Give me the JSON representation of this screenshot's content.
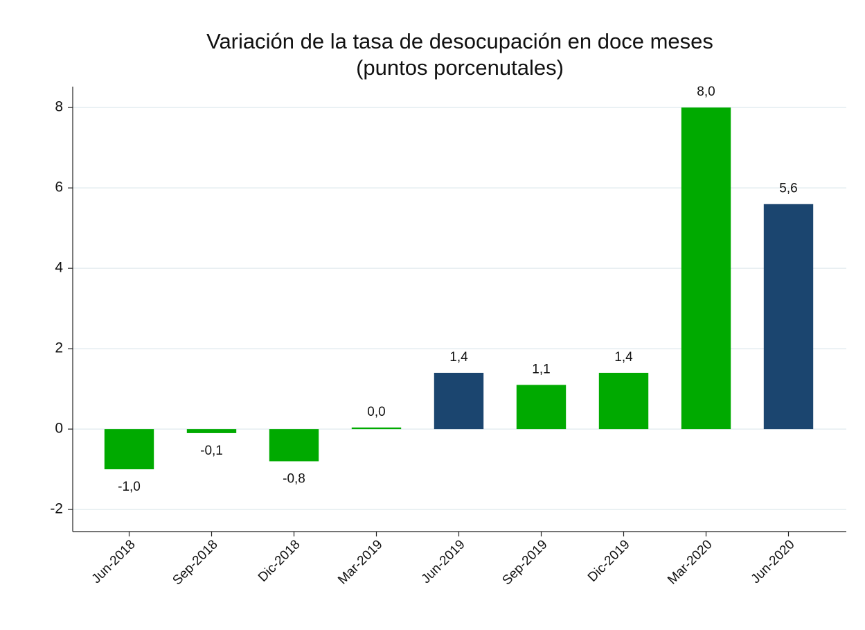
{
  "chart_data": {
    "type": "bar",
    "title": "Variación de la tasa de desocupación en doce meses",
    "subtitle": "(puntos porcenutales)",
    "categories": [
      "Jun-2018",
      "Sep-2018",
      "Dic-2018",
      "Mar-2019",
      "Jun-2019",
      "Sep-2019",
      "Dic-2019",
      "Mar-2020",
      "Jun-2020"
    ],
    "values": [
      -1.0,
      -0.1,
      -0.8,
      0.04,
      1.4,
      1.1,
      1.4,
      8.0,
      5.6
    ],
    "value_labels": [
      "-1,0",
      "-0,1",
      "-0,8",
      "0,0",
      "1,4",
      "1,1",
      "1,4",
      "8,0",
      "5,6"
    ],
    "colors": [
      "#00aa00",
      "#00aa00",
      "#00aa00",
      "#00aa00",
      "#1b456f",
      "#00aa00",
      "#00aa00",
      "#00aa00",
      "#1b456f"
    ],
    "ylim": [
      -2.55,
      8.52
    ],
    "yticks": [
      -2,
      0,
      2,
      4,
      6,
      8
    ],
    "grid": true
  }
}
